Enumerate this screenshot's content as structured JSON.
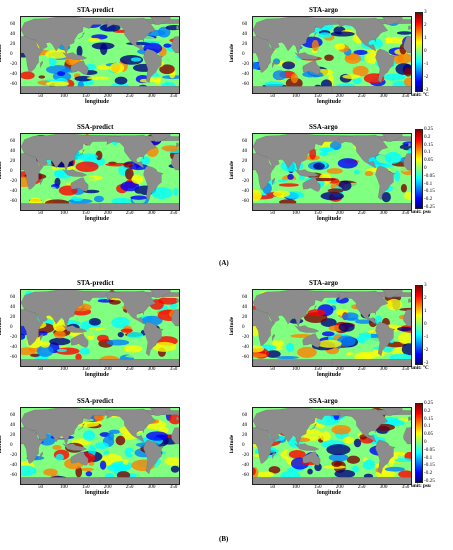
{
  "figure": {
    "section_labels": [
      "(A)",
      "(B)"
    ]
  },
  "chart_data": [
    {
      "type": "heatmap",
      "section": "(A)",
      "title": "STA-predict",
      "xlabel": "longitude",
      "ylabel": "latitude",
      "xticks": [
        "50",
        "100",
        "150",
        "200",
        "250",
        "300",
        "350"
      ],
      "yticks": [
        "60",
        "40",
        "20",
        "0",
        "-20",
        "-40",
        "-60"
      ],
      "xlim": [
        0,
        360
      ],
      "ylim": [
        -75,
        75
      ],
      "colorbar": null
    },
    {
      "type": "heatmap",
      "section": "(A)",
      "title": "STA-argo",
      "xlabel": "longitude",
      "ylabel": "latitude",
      "xticks": [
        "50",
        "100",
        "150",
        "200",
        "250",
        "300",
        "350"
      ],
      "yticks": [
        "60",
        "40",
        "20",
        "0",
        "-20",
        "-40",
        "-60"
      ],
      "xlim": [
        0,
        360
      ],
      "ylim": [
        -75,
        75
      ],
      "colorbar": {
        "ticks": [
          "3",
          "2",
          "1",
          "0",
          "-1",
          "-2",
          "-3"
        ],
        "range": [
          -3,
          3
        ],
        "unit": "unit: °C"
      }
    },
    {
      "type": "heatmap",
      "section": "(A)",
      "title": "SSA-predict",
      "xlabel": "longitude",
      "ylabel": "latitude",
      "xticks": [
        "50",
        "100",
        "150",
        "200",
        "250",
        "300",
        "350"
      ],
      "yticks": [
        "60",
        "40",
        "20",
        "0",
        "-20",
        "-40",
        "-60"
      ],
      "xlim": [
        0,
        360
      ],
      "ylim": [
        -75,
        75
      ],
      "colorbar": null
    },
    {
      "type": "heatmap",
      "section": "(A)",
      "title": "SSA-argo",
      "xlabel": "longitude",
      "ylabel": "latitude",
      "xticks": [
        "50",
        "100",
        "150",
        "200",
        "250",
        "300",
        "350"
      ],
      "yticks": [
        "60",
        "40",
        "20",
        "0",
        "-20",
        "-40",
        "-60"
      ],
      "xlim": [
        0,
        360
      ],
      "ylim": [
        -75,
        75
      ],
      "colorbar": {
        "ticks": [
          "0.25",
          "0.2",
          "0.15",
          "0.1",
          "0.05",
          "0",
          "-0.05",
          "-0.1",
          "-0.15",
          "-0.2",
          "-0.25"
        ],
        "range": [
          -0.25,
          0.25
        ],
        "unit": "unit: psu"
      }
    },
    {
      "type": "heatmap",
      "section": "(B)",
      "title": "STA-predict",
      "xlabel": "longitude",
      "ylabel": "latitude",
      "xticks": [
        "50",
        "100",
        "150",
        "200",
        "250",
        "300",
        "350"
      ],
      "yticks": [
        "60",
        "40",
        "20",
        "0",
        "-20",
        "-40",
        "-60"
      ],
      "xlim": [
        0,
        360
      ],
      "ylim": [
        -75,
        75
      ],
      "colorbar": null
    },
    {
      "type": "heatmap",
      "section": "(B)",
      "title": "STA-argo",
      "xlabel": "longitude",
      "ylabel": "latitude",
      "xticks": [
        "50",
        "100",
        "150",
        "200",
        "250",
        "300",
        "350"
      ],
      "yticks": [
        "60",
        "40",
        "20",
        "0",
        "-20",
        "-40",
        "-60"
      ],
      "xlim": [
        0,
        360
      ],
      "ylim": [
        -75,
        75
      ],
      "colorbar": {
        "ticks": [
          "3",
          "2",
          "1",
          "0",
          "-1",
          "-2",
          "-3"
        ],
        "range": [
          -3,
          3
        ],
        "unit": "unit: °C"
      }
    },
    {
      "type": "heatmap",
      "section": "(B)",
      "title": "SSA-predict",
      "xlabel": "longitude",
      "ylabel": "latitude",
      "xticks": [
        "50",
        "100",
        "150",
        "200",
        "250",
        "300",
        "350"
      ],
      "yticks": [
        "60",
        "40",
        "20",
        "0",
        "-20",
        "-40",
        "-60"
      ],
      "xlim": [
        0,
        360
      ],
      "ylim": [
        -75,
        75
      ],
      "colorbar": null
    },
    {
      "type": "heatmap",
      "section": "(B)",
      "title": "SSA-argo",
      "xlabel": "longitude",
      "ylabel": "latitude",
      "xticks": [
        "50",
        "100",
        "150",
        "200",
        "250",
        "300",
        "350"
      ],
      "yticks": [
        "60",
        "40",
        "20",
        "0",
        "-20",
        "-40",
        "-60"
      ],
      "xlim": [
        0,
        360
      ],
      "ylim": [
        -75,
        75
      ],
      "colorbar": {
        "ticks": [
          "0.25",
          "0.2",
          "0.15",
          "0.1",
          "0.05",
          "0",
          "-0.05",
          "-0.1",
          "-0.15",
          "-0.2",
          "-0.25"
        ],
        "range": [
          -0.25,
          0.25
        ],
        "unit": "unit: psu"
      }
    }
  ],
  "colors": {
    "land": "#8c8c8c",
    "colormap": [
      "#000080",
      "#0000ff",
      "#0080ff",
      "#00ffff",
      "#80ff80",
      "#ffff00",
      "#ff8000",
      "#ff0000",
      "#800000"
    ]
  }
}
